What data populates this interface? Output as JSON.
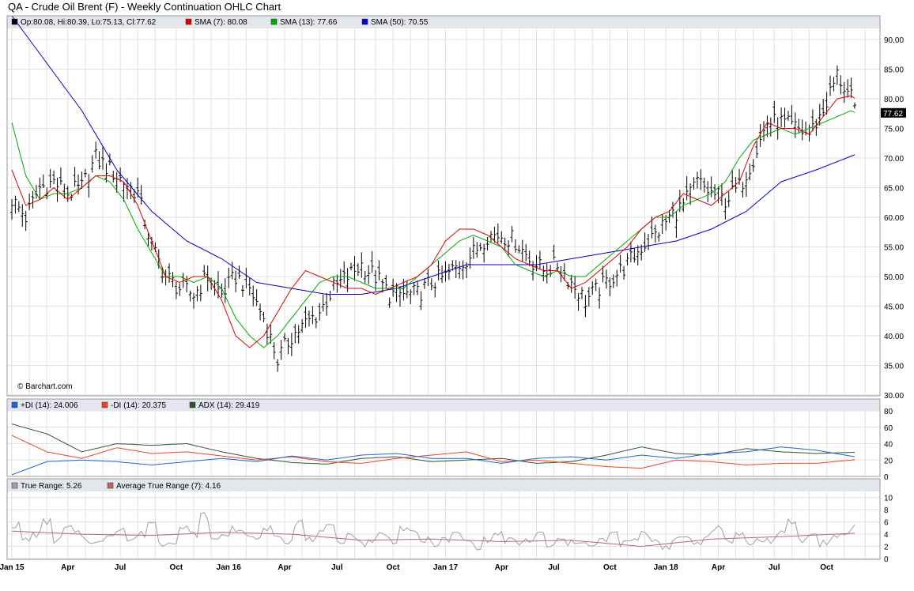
{
  "header": {
    "title": "QA - Crude Oil Brent (F) - Weekly Continuation OHLC Chart"
  },
  "price_panel": {
    "legend": [
      {
        "label": "Op:80.08, Hi:80.39, Lo:75.13, Cl:77.62",
        "color": "#000000"
      },
      {
        "label": "SMA (7): 80.08",
        "color": "#dd0000"
      },
      {
        "label": "SMA (13): 77.66",
        "color": "#00aa00"
      },
      {
        "label": "SMA (50): 70.55",
        "color": "#0000cc"
      }
    ],
    "last_price_badge": "77.62",
    "watermark": "© Barchart.com",
    "y_ticks": [
      "30.00",
      "35.00",
      "40.00",
      "45.00",
      "50.00",
      "55.00",
      "60.00",
      "65.00",
      "70.00",
      "75.00",
      "80.00",
      "85.00",
      "90.00"
    ]
  },
  "dmi_panel": {
    "legend": [
      {
        "label": "+DI (14): 24.006",
        "color": "#1a66dd"
      },
      {
        "label": "-DI (14): 20.375",
        "color": "#ee4422"
      },
      {
        "label": "ADX (14): 29.419",
        "color": "#335533"
      }
    ],
    "y_ticks": [
      "0",
      "20",
      "40",
      "60",
      "80"
    ]
  },
  "atr_panel": {
    "legend": [
      {
        "label": "True Range: 5.26",
        "color": "#a0a0a0"
      },
      {
        "label": "Average True Range (7): 4.16",
        "color": "#bb6666"
      }
    ],
    "y_ticks": [
      "0",
      "2",
      "4",
      "6",
      "8",
      "10"
    ]
  },
  "x_axis": {
    "labels": [
      "Jan 15",
      "Apr",
      "Jul",
      "Oct",
      "Jan 16",
      "Apr",
      "Jul",
      "Oct",
      "Jan 17",
      "Apr",
      "Jul",
      "Oct",
      "Jan 18",
      "Apr",
      "Jul",
      "Oct"
    ]
  },
  "chart_data": {
    "type": "line",
    "frequency": "weekly",
    "x_range": [
      "2015-01",
      "2018-10"
    ],
    "price": {
      "ylim": [
        30,
        92
      ],
      "close": [
        [
          0,
          63
        ],
        [
          4,
          60
        ],
        [
          8,
          65
        ],
        [
          12,
          66
        ],
        [
          16,
          64
        ],
        [
          20,
          65
        ],
        [
          24,
          70
        ],
        [
          28,
          68
        ],
        [
          32,
          66
        ],
        [
          36,
          64
        ],
        [
          40,
          55
        ],
        [
          44,
          50
        ],
        [
          48,
          48
        ],
        [
          52,
          47
        ],
        [
          56,
          50
        ],
        [
          60,
          47
        ],
        [
          64,
          50
        ],
        [
          68,
          48
        ],
        [
          72,
          43
        ],
        [
          76,
          36
        ],
        [
          80,
          40
        ],
        [
          84,
          42
        ],
        [
          88,
          44
        ],
        [
          92,
          48
        ],
        [
          96,
          50
        ],
        [
          100,
          52
        ],
        [
          104,
          50
        ],
        [
          108,
          47
        ],
        [
          112,
          47
        ],
        [
          116,
          47
        ],
        [
          120,
          49
        ],
        [
          124,
          50
        ],
        [
          128,
          52
        ],
        [
          132,
          54
        ],
        [
          136,
          57
        ],
        [
          140,
          57
        ],
        [
          144,
          56
        ],
        [
          148,
          53
        ],
        [
          152,
          51
        ],
        [
          156,
          52
        ],
        [
          160,
          49
        ],
        [
          164,
          46
        ],
        [
          168,
          48
        ],
        [
          172,
          50
        ],
        [
          176,
          52
        ],
        [
          180,
          55
        ],
        [
          184,
          57
        ],
        [
          188,
          60
        ],
        [
          192,
          62
        ],
        [
          196,
          66
        ],
        [
          200,
          64
        ],
        [
          204,
          63
        ],
        [
          208,
          65
        ],
        [
          212,
          70
        ],
        [
          216,
          76
        ],
        [
          220,
          76
        ],
        [
          224,
          75
        ],
        [
          228,
          74
        ],
        [
          232,
          78
        ],
        [
          236,
          84
        ],
        [
          240,
          80
        ],
        [
          241,
          77.62
        ]
      ],
      "sma7": [
        [
          0,
          68
        ],
        [
          4,
          62
        ],
        [
          8,
          63
        ],
        [
          12,
          65
        ],
        [
          16,
          63
        ],
        [
          20,
          65
        ],
        [
          24,
          67
        ],
        [
          28,
          67
        ],
        [
          32,
          66
        ],
        [
          36,
          62
        ],
        [
          40,
          56
        ],
        [
          44,
          50
        ],
        [
          48,
          49
        ],
        [
          52,
          50
        ],
        [
          56,
          50
        ],
        [
          60,
          46
        ],
        [
          64,
          40
        ],
        [
          68,
          38
        ],
        [
          72,
          40
        ],
        [
          76,
          44
        ],
        [
          80,
          48
        ],
        [
          84,
          51
        ],
        [
          88,
          50
        ],
        [
          92,
          49
        ],
        [
          96,
          48
        ],
        [
          100,
          48
        ],
        [
          104,
          47
        ],
        [
          108,
          48
        ],
        [
          112,
          49
        ],
        [
          116,
          50
        ],
        [
          120,
          52
        ],
        [
          124,
          56
        ],
        [
          128,
          58
        ],
        [
          132,
          58
        ],
        [
          136,
          57
        ],
        [
          140,
          55
        ],
        [
          144,
          53
        ],
        [
          148,
          52
        ],
        [
          152,
          51
        ],
        [
          156,
          51
        ],
        [
          160,
          48
        ],
        [
          164,
          49
        ],
        [
          168,
          51
        ],
        [
          172,
          53
        ],
        [
          176,
          55
        ],
        [
          180,
          58
        ],
        [
          184,
          60
        ],
        [
          188,
          61
        ],
        [
          192,
          64
        ],
        [
          196,
          63
        ],
        [
          200,
          62
        ],
        [
          204,
          64
        ],
        [
          208,
          66
        ],
        [
          212,
          72
        ],
        [
          216,
          76
        ],
        [
          220,
          75
        ],
        [
          224,
          75
        ],
        [
          228,
          74
        ],
        [
          232,
          77
        ],
        [
          236,
          80
        ],
        [
          240,
          80.5
        ],
        [
          241,
          80.08
        ]
      ],
      "sma13": [
        [
          0,
          76
        ],
        [
          4,
          67
        ],
        [
          8,
          63
        ],
        [
          12,
          64
        ],
        [
          16,
          64
        ],
        [
          20,
          65
        ],
        [
          24,
          67
        ],
        [
          28,
          66
        ],
        [
          32,
          63
        ],
        [
          36,
          58
        ],
        [
          40,
          54
        ],
        [
          44,
          50
        ],
        [
          48,
          50
        ],
        [
          52,
          49
        ],
        [
          56,
          50
        ],
        [
          60,
          48
        ],
        [
          64,
          43
        ],
        [
          68,
          40
        ],
        [
          72,
          38
        ],
        [
          76,
          40
        ],
        [
          80,
          43
        ],
        [
          84,
          46
        ],
        [
          88,
          49
        ],
        [
          92,
          50
        ],
        [
          96,
          50
        ],
        [
          100,
          49
        ],
        [
          104,
          48
        ],
        [
          108,
          48
        ],
        [
          112,
          48
        ],
        [
          116,
          50
        ],
        [
          120,
          52
        ],
        [
          124,
          54
        ],
        [
          128,
          56
        ],
        [
          132,
          57
        ],
        [
          136,
          56
        ],
        [
          140,
          55
        ],
        [
          144,
          52
        ],
        [
          148,
          51
        ],
        [
          152,
          50
        ],
        [
          156,
          51
        ],
        [
          160,
          50
        ],
        [
          164,
          50
        ],
        [
          168,
          52
        ],
        [
          172,
          54
        ],
        [
          176,
          56
        ],
        [
          180,
          58
        ],
        [
          184,
          60
        ],
        [
          188,
          60
        ],
        [
          192,
          62
        ],
        [
          196,
          63
        ],
        [
          200,
          64
        ],
        [
          204,
          66
        ],
        [
          208,
          70
        ],
        [
          212,
          73
        ],
        [
          216,
          74
        ],
        [
          220,
          75
        ],
        [
          224,
          74
        ],
        [
          228,
          75
        ],
        [
          232,
          76
        ],
        [
          236,
          77
        ],
        [
          240,
          78
        ],
        [
          241,
          77.66
        ]
      ],
      "sma50": [
        [
          0,
          94
        ],
        [
          10,
          86
        ],
        [
          20,
          78
        ],
        [
          30,
          68
        ],
        [
          40,
          61
        ],
        [
          50,
          56
        ],
        [
          60,
          53
        ],
        [
          70,
          49
        ],
        [
          80,
          48
        ],
        [
          90,
          47
        ],
        [
          100,
          47
        ],
        [
          110,
          48
        ],
        [
          120,
          50
        ],
        [
          130,
          52
        ],
        [
          140,
          52
        ],
        [
          150,
          52
        ],
        [
          160,
          53
        ],
        [
          170,
          54
        ],
        [
          180,
          55
        ],
        [
          190,
          56
        ],
        [
          200,
          58
        ],
        [
          210,
          61
        ],
        [
          220,
          66
        ],
        [
          230,
          68
        ],
        [
          241,
          70.55
        ]
      ]
    },
    "dmi": {
      "ylim": [
        0,
        80
      ],
      "plus_di": [
        [
          0,
          2
        ],
        [
          10,
          18
        ],
        [
          20,
          20
        ],
        [
          30,
          18
        ],
        [
          40,
          14
        ],
        [
          50,
          18
        ],
        [
          60,
          22
        ],
        [
          70,
          18
        ],
        [
          80,
          25
        ],
        [
          90,
          20
        ],
        [
          100,
          26
        ],
        [
          110,
          28
        ],
        [
          120,
          22
        ],
        [
          130,
          22
        ],
        [
          140,
          16
        ],
        [
          150,
          22
        ],
        [
          160,
          24
        ],
        [
          170,
          20
        ],
        [
          180,
          26
        ],
        [
          190,
          22
        ],
        [
          200,
          28
        ],
        [
          210,
          30
        ],
        [
          220,
          36
        ],
        [
          230,
          32
        ],
        [
          241,
          24.006
        ]
      ],
      "minus_di": [
        [
          0,
          50
        ],
        [
          10,
          30
        ],
        [
          20,
          22
        ],
        [
          30,
          35
        ],
        [
          40,
          28
        ],
        [
          50,
          30
        ],
        [
          60,
          25
        ],
        [
          70,
          20
        ],
        [
          80,
          24
        ],
        [
          90,
          18
        ],
        [
          100,
          16
        ],
        [
          110,
          22
        ],
        [
          120,
          26
        ],
        [
          130,
          30
        ],
        [
          140,
          18
        ],
        [
          150,
          20
        ],
        [
          160,
          16
        ],
        [
          170,
          12
        ],
        [
          180,
          10
        ],
        [
          190,
          20
        ],
        [
          200,
          18
        ],
        [
          210,
          14
        ],
        [
          220,
          16
        ],
        [
          230,
          16
        ],
        [
          241,
          20.375
        ]
      ],
      "adx": [
        [
          0,
          64
        ],
        [
          10,
          52
        ],
        [
          20,
          30
        ],
        [
          30,
          40
        ],
        [
          40,
          38
        ],
        [
          50,
          40
        ],
        [
          60,
          30
        ],
        [
          70,
          22
        ],
        [
          80,
          17
        ],
        [
          90,
          15
        ],
        [
          100,
          22
        ],
        [
          110,
          24
        ],
        [
          120,
          18
        ],
        [
          130,
          20
        ],
        [
          140,
          22
        ],
        [
          150,
          16
        ],
        [
          160,
          18
        ],
        [
          170,
          26
        ],
        [
          180,
          36
        ],
        [
          190,
          28
        ],
        [
          200,
          26
        ],
        [
          210,
          34
        ],
        [
          220,
          30
        ],
        [
          230,
          28
        ],
        [
          241,
          29.419
        ]
      ]
    },
    "atr": {
      "ylim": [
        0,
        11
      ],
      "true_range_values": [
        5.5,
        3,
        4,
        6,
        3,
        5,
        4,
        3,
        2.5,
        4,
        5,
        3,
        4,
        6,
        2.5,
        3,
        5,
        4,
        7,
        3,
        4,
        5,
        4,
        3,
        5,
        4,
        3,
        6,
        3,
        4,
        5,
        3,
        4,
        2.5,
        3,
        4,
        3,
        5,
        4,
        3,
        2.5,
        3,
        4,
        3,
        2,
        3,
        4,
        3,
        2.5,
        3,
        4,
        2,
        3,
        2.5,
        3,
        2,
        3,
        4,
        2.5,
        3,
        4,
        3,
        2,
        3,
        3.5,
        2.5,
        4,
        5,
        3,
        4,
        2.5,
        3,
        3,
        4,
        6,
        3,
        4,
        2.5,
        3.5,
        4,
        5.26
      ],
      "avg_true_range": [
        [
          0,
          4.5
        ],
        [
          20,
          4
        ],
        [
          40,
          3.8
        ],
        [
          60,
          4.3
        ],
        [
          80,
          4
        ],
        [
          100,
          3
        ],
        [
          120,
          3.2
        ],
        [
          140,
          2.8
        ],
        [
          160,
          3
        ],
        [
          180,
          2
        ],
        [
          200,
          3.2
        ],
        [
          220,
          3.6
        ],
        [
          241,
          4.16
        ]
      ]
    }
  }
}
